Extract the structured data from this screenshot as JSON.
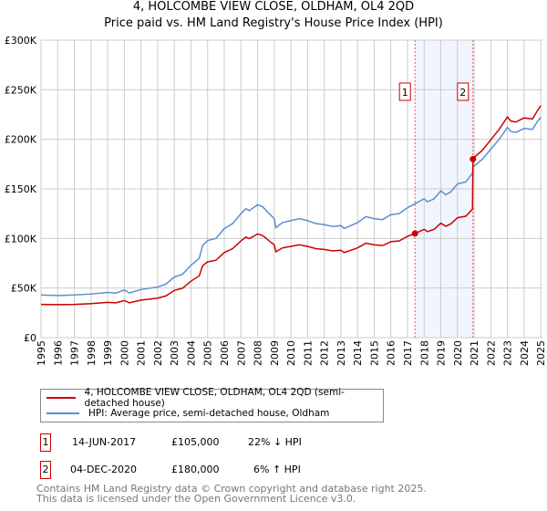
{
  "title": "4, HOLCOMBE VIEW CLOSE, OLDHAM, OL4 2QD",
  "subtitle": "Price paid vs. HM Land Registry's House Price Index (HPI)",
  "chart_data": {
    "type": "line",
    "title": "4, HOLCOMBE VIEW CLOSE, OLDHAM, OL4 2QD",
    "subtitle": "Price paid vs. HM Land Registry's House Price Index (HPI)",
    "xlim": [
      1995,
      2025.1
    ],
    "ylim": [
      0,
      300000
    ],
    "yticks": [
      0,
      50000,
      100000,
      150000,
      200000,
      250000,
      300000
    ],
    "ytick_labels": [
      "£0",
      "£50K",
      "£100K",
      "£150K",
      "£200K",
      "£250K",
      "£300K"
    ],
    "xticks": [
      "1995",
      "1996",
      "1997",
      "1998",
      "1999",
      "2000",
      "2001",
      "2002",
      "2003",
      "2004",
      "2005",
      "2006",
      "2007",
      "2008",
      "2009",
      "2010",
      "2011",
      "2012",
      "2013",
      "2014",
      "2015",
      "2016",
      "2017",
      "2018",
      "2019",
      "2020",
      "2021",
      "2022",
      "2023",
      "2024",
      "2025"
    ],
    "grid": true,
    "x": [
      1995,
      1996,
      1997,
      1998,
      1999,
      1999.5,
      2000,
      2000.3,
      2001,
      2002,
      2002.5,
      2003,
      2003.5,
      2004,
      2004.5,
      2004.7,
      2005,
      2005.5,
      2006,
      2006.5,
      2007,
      2007.3,
      2007.5,
      2008,
      2008.3,
      2008.7,
      2009,
      2009.1,
      2009.5,
      2010,
      2010.5,
      2011,
      2011.5,
      2012,
      2012.5,
      2013,
      2013.2,
      2014,
      2014.5,
      2015,
      2015.5,
      2016,
      2016.5,
      2017,
      2017.45,
      2018,
      2018.2,
      2018.6,
      2019,
      2019.3,
      2019.6,
      2020,
      2020.5,
      2020.9,
      2020.93,
      2021,
      2021.5,
      2022,
      2022.5,
      2023,
      2023.2,
      2023.5,
      2024,
      2024.5,
      2024.8,
      2025
    ],
    "series": [
      {
        "name": "4, HOLCOMBE VIEW CLOSE, OLDHAM, OL4 2QD (semi-detached house)",
        "color": "#cc0000",
        "values": [
          33500,
          33200,
          33500,
          34300,
          35500,
          35100,
          37400,
          35100,
          37800,
          39800,
          42100,
          47600,
          49900,
          56900,
          62400,
          72500,
          76400,
          78000,
          85800,
          89700,
          97500,
          101400,
          99800,
          104500,
          103000,
          97500,
          93600,
          86600,
          90500,
          92000,
          93600,
          92000,
          89700,
          88900,
          87400,
          88100,
          85800,
          90500,
          95200,
          93600,
          92800,
          96700,
          97500,
          102200,
          105000,
          109200,
          106900,
          109200,
          115400,
          112300,
          114700,
          120900,
          122500,
          129500,
          180000,
          181700,
          189000,
          199500,
          210000,
          222600,
          218400,
          217400,
          221600,
          220500,
          228900,
          234000
        ]
      },
      {
        "name": "HPI: Average price, semi-detached house, Oldham",
        "color": "#5b8fd0",
        "values": [
          43000,
          42500,
          43000,
          44000,
          45500,
          45000,
          48000,
          45000,
          48500,
          51000,
          54000,
          61000,
          64000,
          73000,
          80000,
          93000,
          98000,
          100000,
          110000,
          115000,
          125000,
          130000,
          128000,
          134000,
          132000,
          125000,
          120000,
          111000,
          116000,
          118000,
          120000,
          118000,
          115000,
          114000,
          112000,
          113000,
          110000,
          116000,
          122000,
          120000,
          119000,
          124000,
          125000,
          131000,
          135000,
          140000,
          137000,
          140000,
          148000,
          144000,
          147000,
          155000,
          157000,
          166000,
          172000,
          173000,
          180000,
          190000,
          200000,
          212000,
          208000,
          207000,
          211000,
          210000,
          218000,
          222000
        ]
      }
    ],
    "sales": [
      {
        "label": "1",
        "x": 2017.45,
        "price": 105000,
        "date": "14-JUN-2017",
        "price_text": "£105,000",
        "hpi_text": "22% ↓ HPI"
      },
      {
        "label": "2",
        "x": 2020.93,
        "price": 180000,
        "date": "04-DEC-2020",
        "price_text": "£180,000",
        "hpi_text": "6% ↑ HPI"
      }
    ],
    "shaded_range": [
      2017.45,
      2020.93
    ],
    "legend_placement": "below"
  },
  "footer": {
    "line1": "Contains HM Land Registry data © Crown copyright and database right 2025.",
    "line2": "This data is licensed under the Open Government Licence v3.0."
  }
}
